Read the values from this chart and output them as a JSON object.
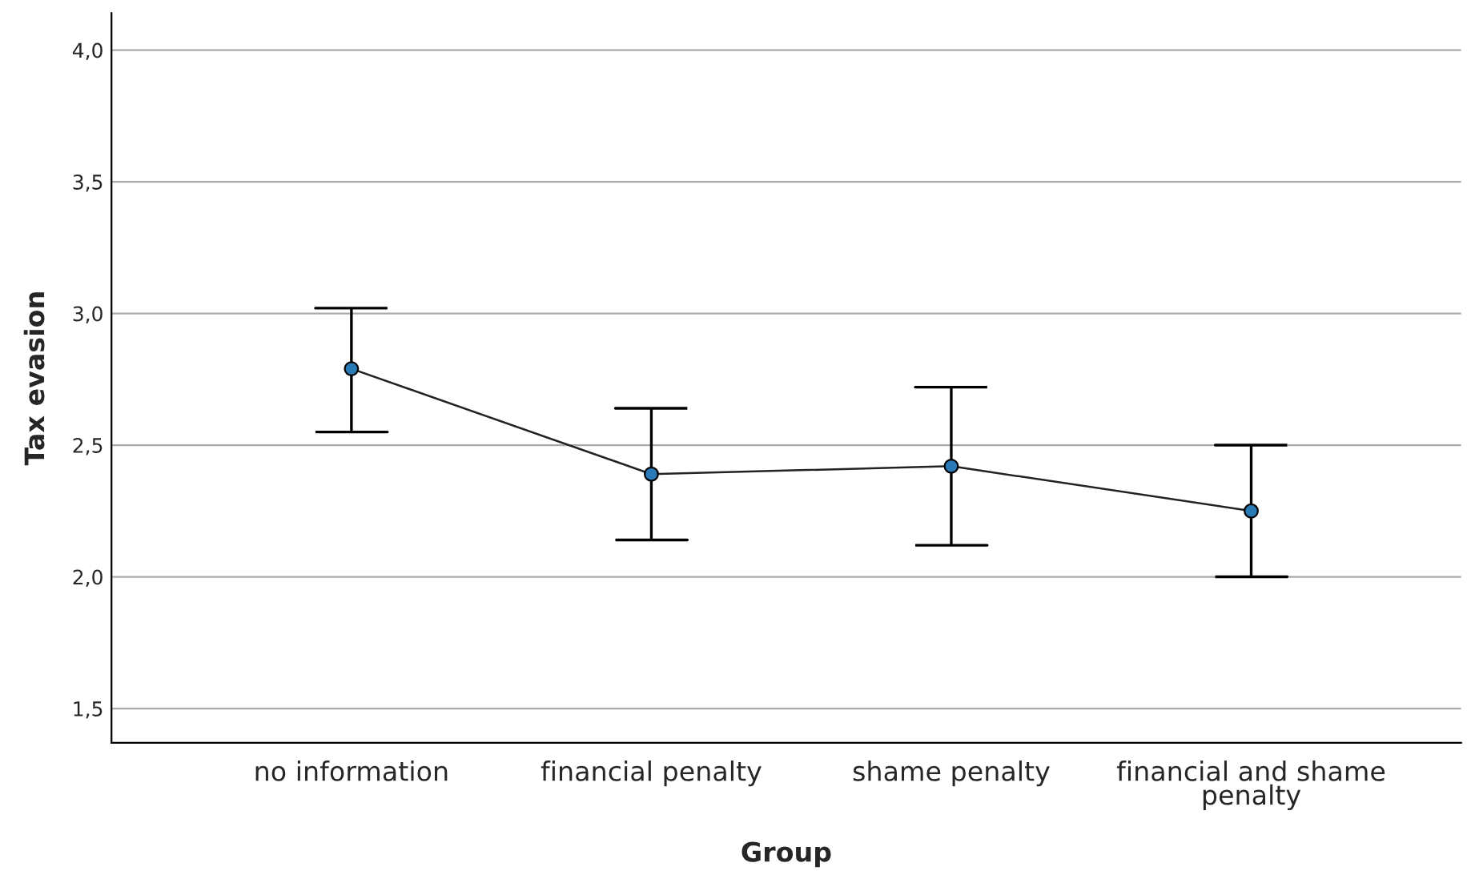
{
  "chart_data": {
    "type": "line",
    "xlabel": "Group",
    "ylabel": "Tax evasion",
    "categories": [
      "no information",
      "financial penalty",
      "shame penalty",
      "financial and shame penalty"
    ],
    "series": [
      {
        "color": "#2a7ab8",
        "values": [
          2.79,
          2.39,
          2.42,
          2.25
        ],
        "errors": [
          [
            2.55,
            3.02
          ],
          [
            2.14,
            2.64
          ],
          [
            2.12,
            2.72
          ],
          [
            2.0,
            2.5
          ]
        ]
      }
    ],
    "ylim": [
      1.37,
      4.14
    ],
    "yticks": [
      {
        "value": 1.5,
        "label": "1,5"
      },
      {
        "value": 2.0,
        "label": "2,0"
      },
      {
        "value": 2.5,
        "label": "2,5"
      },
      {
        "value": 3.0,
        "label": "3,0"
      },
      {
        "value": 3.5,
        "label": "3,5"
      },
      {
        "value": 4.0,
        "label": "4,0"
      }
    ],
    "grid": "y",
    "marker": "circle",
    "line_style": "solid"
  }
}
